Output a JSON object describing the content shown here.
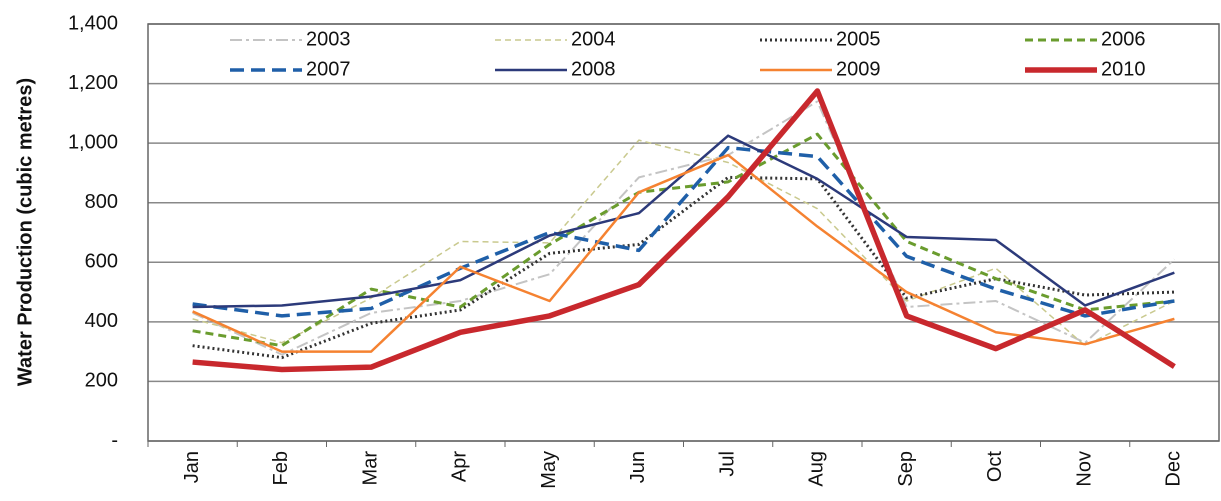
{
  "chart_data": {
    "type": "line",
    "y_label": "Water Production (cubic metres)",
    "categories": [
      "Jan",
      "Feb",
      "Mar",
      "Apr",
      "May",
      "Jun",
      "Jul",
      "Aug",
      "Sep",
      "Oct",
      "Nov",
      "Dec"
    ],
    "ylim": [
      0,
      1400
    ],
    "yticks": [
      {
        "value": 0,
        "label": "-"
      },
      200,
      400,
      600,
      800,
      {
        "value": 1000,
        "label": "1,000"
      },
      {
        "value": 1200,
        "label": "1,200"
      },
      {
        "value": 1400,
        "label": "1,400"
      }
    ],
    "grid": true,
    "legend": "top",
    "series": [
      {
        "name": "2003",
        "color": "#c4c4c4",
        "dash": "12 4 3 4",
        "width": 2,
        "values": [
          430,
          290,
          430,
          470,
          560,
          885,
          960,
          1140,
          450,
          470,
          330,
          610
        ]
      },
      {
        "name": "2004",
        "color": "#c9c98e",
        "dash": "6 4",
        "width": 1.5,
        "values": [
          410,
          330,
          480,
          670,
          665,
          1010,
          935,
          780,
          470,
          580,
          320,
          470
        ]
      },
      {
        "name": "2005",
        "color": "#333333",
        "dash": "2 3",
        "width": 3,
        "values": [
          320,
          280,
          395,
          440,
          630,
          660,
          885,
          880,
          480,
          545,
          490,
          500
        ]
      },
      {
        "name": "2006",
        "color": "#6a9c2e",
        "dash": "8 5",
        "width": 3,
        "values": [
          370,
          320,
          510,
          450,
          660,
          835,
          870,
          1030,
          670,
          545,
          440,
          470
        ]
      },
      {
        "name": "2007",
        "color": "#1f5fa8",
        "dash": "14 7",
        "width": 3.5,
        "values": [
          460,
          420,
          445,
          580,
          700,
          640,
          985,
          955,
          620,
          510,
          420,
          470
        ]
      },
      {
        "name": "2008",
        "color": "#2c3a7a",
        "dash": "none",
        "width": 2.5,
        "values": [
          450,
          455,
          485,
          540,
          690,
          765,
          1025,
          880,
          685,
          675,
          455,
          565
        ]
      },
      {
        "name": "2009",
        "color": "#f58231",
        "dash": "none",
        "width": 2.5,
        "values": [
          435,
          300,
          300,
          585,
          470,
          835,
          960,
          720,
          500,
          365,
          325,
          410
        ]
      },
      {
        "name": "2010",
        "color": "#c8282d",
        "dash": "none",
        "width": 5.5,
        "values": [
          265,
          240,
          248,
          365,
          420,
          525,
          820,
          1175,
          420,
          310,
          440,
          250
        ]
      }
    ]
  }
}
